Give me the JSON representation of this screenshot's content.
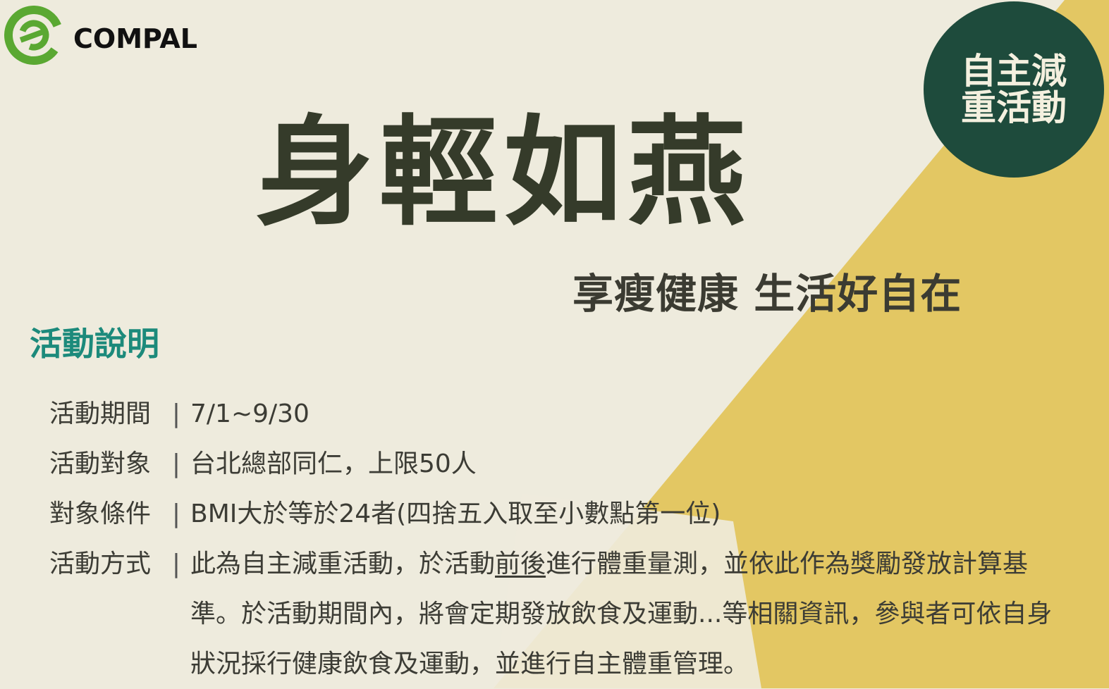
{
  "logo": {
    "icon": "compal-e-logo-icon",
    "text": "COMPAL"
  },
  "badge": {
    "text": "自主減重活動"
  },
  "title": "身輕如燕",
  "subtitle": "享瘦健康 生活好自在",
  "section_heading": "活動說明",
  "separator": "|",
  "details": [
    {
      "label": "活動期間",
      "value": "7/1~9/30"
    },
    {
      "label": "活動對象",
      "value": "台北總部同仁，上限50人"
    },
    {
      "label": "對象條件",
      "value": "BMI大於等於24者(四捨五入取至小數點第一位)"
    },
    {
      "label": "活動方式",
      "value_before": "此為自主減重活動，於活動",
      "value_underlined": "前後",
      "value_after": "進行體重量測，並依此作為獎勵發放計算基準。於活動期間內，將會定期發放飲食及運動...等相關資訊，參與者可依自身狀況採行健康飲食及運動，並進行自主體重管理。"
    }
  ],
  "colors": {
    "background": "#eeebdd",
    "yellow_triangle": "#e3c763",
    "badge_green": "#1e4b3c",
    "logo_green": "#5aa832",
    "title_dark": "#353b2a",
    "heading_teal": "#1c8a7b"
  }
}
